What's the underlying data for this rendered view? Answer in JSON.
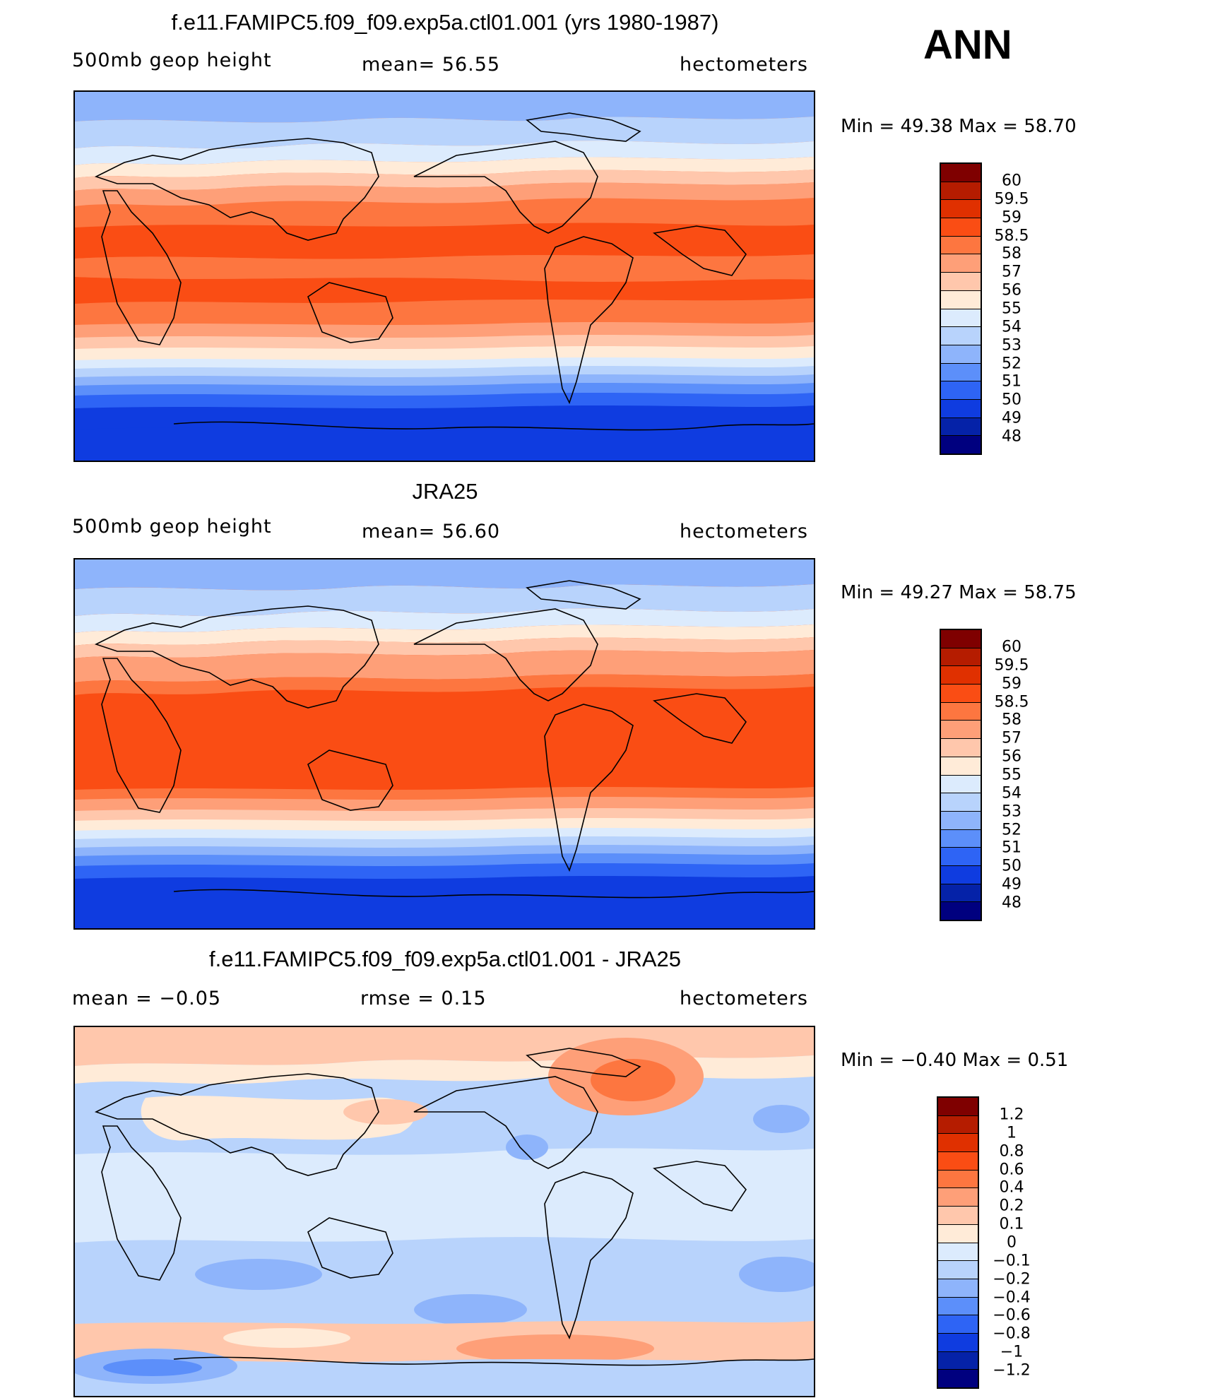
{
  "season": "ANN",
  "panels": [
    {
      "id": "model",
      "title": "f.e11.FAMIPC5.f09_f09.exp5a.ctl01.001 (yrs 1980-1987)",
      "left_label": "500mb  geop  height",
      "center_label": "mean=   56.55",
      "right_label": "hectometers",
      "minmax": "Min  =    49.38  Max  =    58.70",
      "colorbar_labels": [
        "60",
        "59.5",
        "59",
        "58.5",
        "58",
        "57",
        "56",
        "55",
        "54",
        "53",
        "52",
        "51",
        "50",
        "49",
        "48"
      ]
    },
    {
      "id": "obs",
      "title": "JRA25",
      "left_label": "500mb  geop  height",
      "center_label": "mean=   56.60",
      "right_label": "hectometers",
      "minmax": "Min  =    49.27  Max  =    58.75",
      "colorbar_labels": [
        "60",
        "59.5",
        "59",
        "58.5",
        "58",
        "57",
        "56",
        "55",
        "54",
        "53",
        "52",
        "51",
        "50",
        "49",
        "48"
      ]
    },
    {
      "id": "diff",
      "title": "f.e11.FAMIPC5.f09_f09.exp5a.ctl01.001 - JRA25",
      "left_label": "mean  =    −0.05",
      "center_label": "rmse  =     0.15",
      "right_label": "hectometers",
      "minmax": "Min  =    −0.40  Max  =      0.51",
      "colorbar_labels": [
        "1.2",
        "1",
        "0.8",
        "0.6",
        "0.4",
        "0.2",
        "0.1",
        "0",
        "−0.1",
        "−0.2",
        "−0.4",
        "−0.6",
        "−0.8",
        "−1",
        "−1.2"
      ]
    }
  ],
  "colors": {
    "full_field_scale": [
      "#7f0000",
      "#b51c00",
      "#e03000",
      "#fa4d14",
      "#fd7640",
      "#fe9f78",
      "#ffc7ac",
      "#ffebd8",
      "#dcebfd",
      "#b8d3fc",
      "#8eb4fb",
      "#5c8ffa",
      "#2e64f5",
      "#0f3ce0",
      "#0522a8",
      "#00007f"
    ],
    "diff_scale": [
      "#7f0000",
      "#b51c00",
      "#e03000",
      "#fa4d14",
      "#fd7640",
      "#fe9f78",
      "#ffc7ac",
      "#ffebd8",
      "#dcebfd",
      "#b8d3fc",
      "#8eb4fb",
      "#5c8ffa",
      "#2e64f5",
      "#0f3ce0",
      "#0522a8",
      "#00007f"
    ]
  }
}
